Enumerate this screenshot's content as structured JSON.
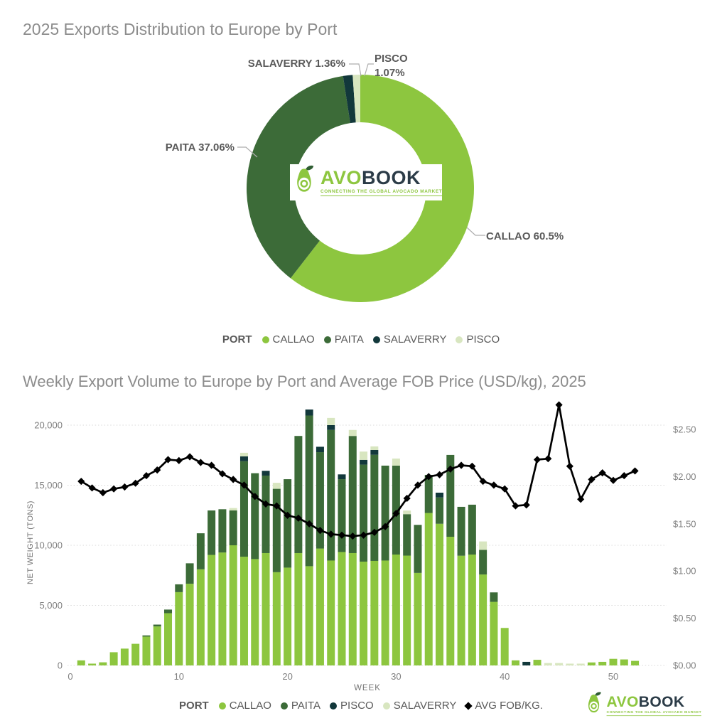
{
  "page": {
    "background": "#FFFFFF"
  },
  "logo": {
    "avo": "AVO",
    "book": "BOOK",
    "tagline": "CONNECTING THE GLOBAL AVOCADO MARKET",
    "accent_green": "#8DC63F",
    "dark_navy": "#2B3B47"
  },
  "chart_data": [
    {
      "type": "pie",
      "title": "2025 Exports Distribution to Europe by Port",
      "labels": [
        "CALLAO",
        "PAITA",
        "SALAVERRY",
        "PISCO"
      ],
      "values": [
        60.5,
        37.06,
        1.36,
        1.07
      ],
      "display_labels": [
        "CALLAO 60.5%",
        "PAITA 37.06%",
        "SALAVERRY 1.36%",
        "PISCO 1.07%"
      ],
      "colors": [
        "#8DC63F",
        "#3C6B38",
        "#12383B",
        "#D8E6C0"
      ],
      "donut_hole": true,
      "start_angle_deg": 0,
      "clockwise": true,
      "legend_title": "PORT",
      "legend_position": "bottom"
    },
    {
      "type": "bar+line",
      "title": "Weekly Export Volume to Europe by Port and Average FOB Price (USD/kg), 2025",
      "x_weeks": [
        1,
        2,
        3,
        4,
        5,
        6,
        7,
        8,
        9,
        10,
        11,
        12,
        13,
        14,
        15,
        16,
        17,
        18,
        19,
        20,
        21,
        22,
        23,
        24,
        25,
        26,
        27,
        28,
        29,
        30,
        31,
        32,
        33,
        34,
        35,
        36,
        37,
        38,
        39,
        40,
        41,
        42,
        43,
        44,
        45,
        46,
        47,
        48,
        49,
        50,
        51,
        52
      ],
      "x_axis": {
        "label": "WEEK",
        "ticks": [
          0,
          10,
          20,
          30,
          40,
          50
        ]
      },
      "y_left": {
        "label": "NET WEIGHT (TONS)",
        "tick_labels": [
          "0",
          "5,000",
          "10,000",
          "15,000",
          "20,000"
        ],
        "tick_values": [
          0,
          5000,
          10000,
          15000,
          20000
        ],
        "axis_max": 21500
      },
      "y_right": {
        "tick_labels": [
          "$0.00",
          "$0.50",
          "$1.00",
          "$1.50",
          "$2.00",
          "$2.50"
        ],
        "tick_values": [
          0,
          0.5,
          1.0,
          1.5,
          2.0,
          2.5
        ],
        "axis_max": 2.8
      },
      "grid": "dotted-horizontal",
      "legend_title": "PORT",
      "legend_position": "bottom",
      "series": [
        {
          "name": "CALLAO",
          "type": "bar",
          "color": "#8DC63F",
          "values": [
            420,
            150,
            260,
            1100,
            1400,
            1800,
            2400,
            3250,
            4350,
            6100,
            6800,
            8000,
            9200,
            9400,
            10000,
            9050,
            8850,
            9350,
            7760,
            8140,
            9350,
            8260,
            9730,
            8730,
            9440,
            9350,
            8640,
            8700,
            8730,
            9230,
            9140,
            7700,
            12690,
            11790,
            10710,
            9130,
            9230,
            7570,
            5290,
            3120,
            420,
            0,
            470,
            0,
            0,
            0,
            0,
            250,
            300,
            550,
            500,
            380
          ]
        },
        {
          "name": "PAITA",
          "type": "bar",
          "color": "#3C6B38",
          "values": [
            0,
            0,
            0,
            0,
            0,
            0,
            100,
            150,
            300,
            650,
            1700,
            3000,
            3700,
            3600,
            2900,
            7950,
            7150,
            6450,
            6940,
            7360,
            9750,
            12540,
            8020,
            10870,
            6060,
            9750,
            8070,
            8830,
            7900,
            7400,
            3450,
            4000,
            3170,
            2190,
            6810,
            4070,
            4150,
            2050,
            790,
            0,
            0,
            0,
            0,
            0,
            0,
            0,
            0,
            0,
            0,
            0,
            0,
            0
          ]
        },
        {
          "name": "PISCO",
          "type": "bar",
          "color": "#12383B",
          "values": [
            0,
            0,
            0,
            0,
            0,
            0,
            0,
            0,
            0,
            0,
            0,
            0,
            0,
            0,
            0,
            400,
            0,
            400,
            0,
            0,
            0,
            500,
            450,
            400,
            400,
            0,
            400,
            400,
            0,
            0,
            0,
            0,
            0,
            400,
            0,
            0,
            0,
            0,
            0,
            0,
            0,
            300,
            0,
            0,
            0,
            0,
            0,
            0,
            0,
            0,
            0,
            0
          ]
        },
        {
          "name": "SALAVERRY",
          "type": "bar",
          "color": "#D8E6C0",
          "values": [
            0,
            0,
            0,
            0,
            0,
            0,
            0,
            0,
            0,
            0,
            0,
            0,
            0,
            0,
            200,
            300,
            0,
            0,
            500,
            0,
            0,
            0,
            0,
            600,
            0,
            500,
            690,
            300,
            0,
            590,
            300,
            0,
            0,
            0,
            0,
            0,
            0,
            700,
            0,
            0,
            0,
            0,
            0,
            200,
            200,
            150,
            150,
            0,
            0,
            0,
            0,
            0
          ]
        },
        {
          "name": "AVG FOB/KG.",
          "type": "line",
          "color": "#000000",
          "values": [
            1.95,
            1.88,
            1.83,
            1.87,
            1.89,
            1.93,
            2.01,
            2.07,
            2.18,
            2.17,
            2.21,
            2.15,
            2.12,
            2.03,
            1.97,
            1.91,
            1.79,
            1.71,
            1.69,
            1.59,
            1.56,
            1.5,
            1.43,
            1.39,
            1.38,
            1.37,
            1.38,
            1.41,
            1.47,
            1.61,
            1.77,
            1.91,
            2.0,
            2.02,
            2.08,
            2.12,
            2.11,
            1.95,
            1.91,
            1.87,
            1.69,
            1.7,
            2.18,
            2.19,
            2.76,
            2.11,
            1.76,
            1.97,
            2.04,
            1.96,
            2.01,
            2.06
          ]
        }
      ]
    }
  ]
}
